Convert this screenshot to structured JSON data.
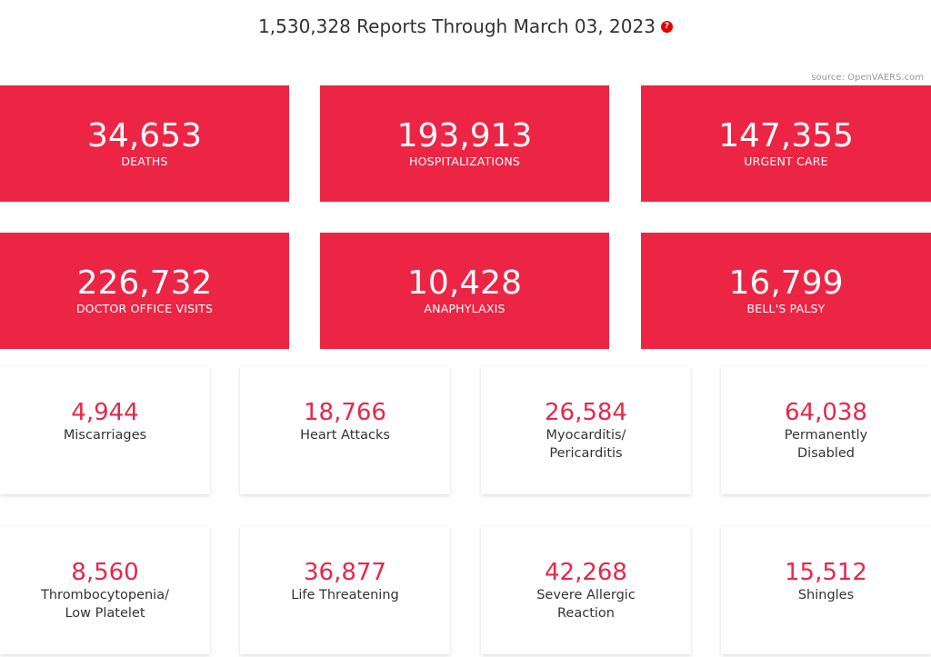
{
  "header": {
    "title": "1,530,328 Reports Through March 03, 2023",
    "help_icon": "question-mark-icon",
    "help_glyph": "?"
  },
  "source": "source: OpenVAERS.com",
  "red_stats": [
    {
      "value": "34,653",
      "label": "DEATHS"
    },
    {
      "value": "193,913",
      "label": "HOSPITALIZATIONS"
    },
    {
      "value": "147,355",
      "label": "URGENT CARE"
    },
    {
      "value": "226,732",
      "label": "DOCTOR OFFICE VISITS"
    },
    {
      "value": "10,428",
      "label": "ANAPHYLAXIS"
    },
    {
      "value": "16,799",
      "label": "BELL'S PALSY"
    }
  ],
  "white_stats": [
    {
      "value": "4,944",
      "label": "Miscarriages"
    },
    {
      "value": "18,766",
      "label": "Heart Attacks"
    },
    {
      "value": "26,584",
      "label": "Myocarditis/ Pericarditis"
    },
    {
      "value": "64,038",
      "label": "Permanently Disabled"
    },
    {
      "value": "8,560",
      "label": "Thrombocytopenia/ Low Platelet"
    },
    {
      "value": "36,877",
      "label": "Life Threatening"
    },
    {
      "value": "42,268",
      "label": "Severe Allergic Reaction"
    },
    {
      "value": "15,512",
      "label": "Shingles"
    }
  ],
  "colors": {
    "accent": "#ec2544",
    "value_text": "#e8274a",
    "help_icon": "#e00000"
  }
}
